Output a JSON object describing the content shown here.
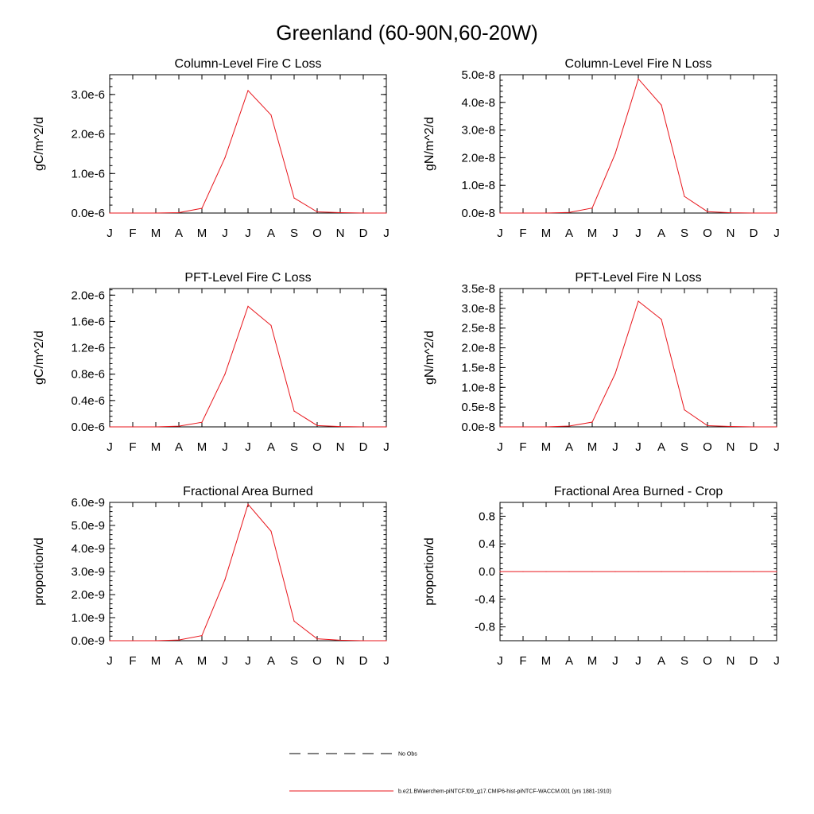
{
  "title": "Greenland (60-90N,60-20W)",
  "chart_data": [
    {
      "type": "line",
      "title": "Column-Level Fire C Loss",
      "ylabel": "gC/m^2/d",
      "xlabel": "",
      "x": [
        "J",
        "F",
        "M",
        "A",
        "M",
        "J",
        "J",
        "A",
        "S",
        "O",
        "N",
        "D",
        "J"
      ],
      "ylim": [
        0,
        3.5e-06
      ],
      "yticks": [
        0,
        1e-06,
        2e-06,
        3e-06
      ],
      "ytick_labels": [
        "0.0e-6",
        "1.0e-6",
        "2.0e-6",
        "3.0e-6"
      ],
      "series": [
        {
          "color": "#e8151b",
          "values": [
            0,
            0,
            0,
            1e-08,
            1.2e-07,
            1.4e-06,
            3.1e-06,
            2.48e-06,
            3.8e-07,
            3e-08,
            1e-08,
            0,
            0
          ]
        }
      ]
    },
    {
      "type": "line",
      "title": "Column-Level Fire N Loss",
      "ylabel": "gN/m^2/d",
      "xlabel": "",
      "x": [
        "J",
        "F",
        "M",
        "A",
        "M",
        "J",
        "J",
        "A",
        "S",
        "O",
        "N",
        "D",
        "J"
      ],
      "ylim": [
        0,
        5e-08
      ],
      "yticks": [
        0,
        1e-08,
        2e-08,
        3e-08,
        4e-08,
        5e-08
      ],
      "ytick_labels": [
        "0.0e-8",
        "1.0e-8",
        "2.0e-8",
        "3.0e-8",
        "4.0e-8",
        "5.0e-8"
      ],
      "series": [
        {
          "color": "#e8151b",
          "values": [
            0,
            0,
            0,
            2e-10,
            1.8e-09,
            2.15e-08,
            4.85e-08,
            3.9e-08,
            6e-09,
            5e-10,
            1e-10,
            0,
            0
          ]
        }
      ]
    },
    {
      "type": "line",
      "title": "PFT-Level Fire C Loss",
      "ylabel": "gC/m^2/d",
      "xlabel": "",
      "x": [
        "J",
        "F",
        "M",
        "A",
        "M",
        "J",
        "J",
        "A",
        "S",
        "O",
        "N",
        "D",
        "J"
      ],
      "ylim": [
        0,
        2.1e-06
      ],
      "yticks": [
        0,
        4e-07,
        8e-07,
        1.2e-06,
        1.6e-06,
        2e-06
      ],
      "ytick_labels": [
        "0.0e-6",
        "0.4e-6",
        "0.8e-6",
        "1.2e-6",
        "1.6e-6",
        "2.0e-6"
      ],
      "series": [
        {
          "color": "#e8151b",
          "values": [
            0,
            0,
            0,
            1e-08,
            7e-08,
            8e-07,
            1.83e-06,
            1.54e-06,
            2.4e-07,
            2e-08,
            5e-09,
            0,
            0
          ]
        }
      ]
    },
    {
      "type": "line",
      "title": "PFT-Level Fire N Loss",
      "ylabel": "gN/m^2/d",
      "xlabel": "",
      "x": [
        "J",
        "F",
        "M",
        "A",
        "M",
        "J",
        "J",
        "A",
        "S",
        "O",
        "N",
        "D",
        "J"
      ],
      "ylim": [
        0,
        3.5e-08
      ],
      "yticks": [
        0,
        5e-09,
        1e-08,
        1.5e-08,
        2e-08,
        2.5e-08,
        3e-08,
        3.5e-08
      ],
      "ytick_labels": [
        "0.0e-8",
        "0.5e-8",
        "1.0e-8",
        "1.5e-8",
        "2.0e-8",
        "2.5e-8",
        "3.0e-8",
        "3.5e-8"
      ],
      "series": [
        {
          "color": "#e8151b",
          "values": [
            0,
            0,
            0,
            2e-10,
            1.2e-09,
            1.35e-08,
            3.18e-08,
            2.72e-08,
            4.3e-09,
            3e-10,
            1e-10,
            0,
            0
          ]
        }
      ]
    },
    {
      "type": "line",
      "title": "Fractional Area Burned",
      "ylabel": "proportion/d",
      "xlabel": "",
      "x": [
        "J",
        "F",
        "M",
        "A",
        "M",
        "J",
        "J",
        "A",
        "S",
        "O",
        "N",
        "D",
        "J"
      ],
      "ylim": [
        0,
        6e-09
      ],
      "yticks": [
        0,
        1e-09,
        2e-09,
        3e-09,
        4e-09,
        5e-09,
        6e-09
      ],
      "ytick_labels": [
        "0.0e-9",
        "1.0e-9",
        "2.0e-9",
        "3.0e-9",
        "4.0e-9",
        "5.0e-9",
        "6.0e-9"
      ],
      "series": [
        {
          "color": "#e8151b",
          "values": [
            0,
            0,
            0,
            3e-11,
            2.2e-10,
            2.65e-09,
            5.92e-09,
            4.75e-09,
            8.5e-10,
            8e-11,
            2e-11,
            0,
            0
          ]
        }
      ]
    },
    {
      "type": "line",
      "title": "Fractional Area Burned - Crop",
      "ylabel": "proportion/d",
      "xlabel": "",
      "x": [
        "J",
        "F",
        "M",
        "A",
        "M",
        "J",
        "J",
        "A",
        "S",
        "O",
        "N",
        "D",
        "J"
      ],
      "ylim": [
        -1.0,
        1.0
      ],
      "yticks": [
        -0.8,
        -0.4,
        0.0,
        0.4,
        0.8
      ],
      "ytick_labels": [
        "-0.8",
        "-0.4",
        "0.0",
        "0.4",
        "0.8"
      ],
      "series": [
        {
          "color": "#e8151b",
          "values": [
            0,
            0,
            0,
            0,
            0,
            0,
            0,
            0,
            0,
            0,
            0,
            0,
            0
          ]
        }
      ]
    }
  ],
  "legend": [
    {
      "label": "No Obs",
      "color": "#000000",
      "dash": true
    },
    {
      "label": "b.e21.BWaerchem-piNTCF.f09_g17.CMIP6-hist-piNTCF-WACCM.001 (yrs 1881-1910)",
      "color": "#e8151b",
      "dash": false
    }
  ]
}
